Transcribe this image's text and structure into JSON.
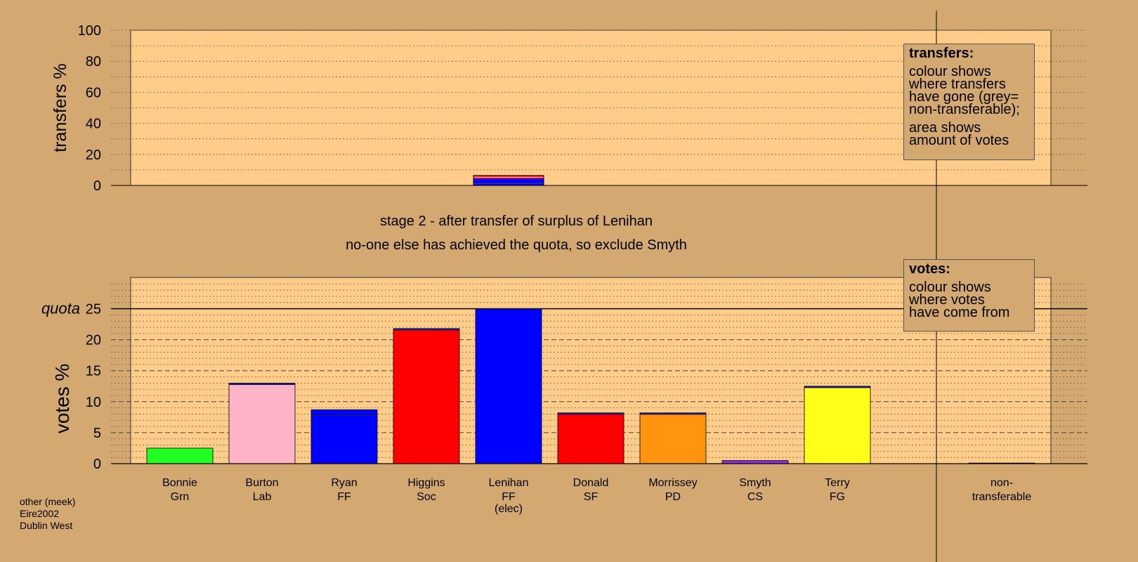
{
  "chart_data": [
    {
      "type": "bar",
      "ylabel": "transfers %",
      "ylim": [
        0,
        100
      ],
      "yticks": [
        0,
        20,
        40,
        60,
        80,
        100
      ],
      "grid": "dotted",
      "bars": [
        {
          "category": "Lenihan",
          "segments": [
            {
              "value": 1.0,
              "color": "#0000ff"
            },
            {
              "value": 0.5,
              "color": "#1a1a6e"
            },
            {
              "value": 2.8,
              "color": "#0000ff"
            },
            {
              "value": 0.7,
              "color": "#ff0000"
            },
            {
              "value": 0.6,
              "color": "#ffb3c6"
            },
            {
              "value": 0.8,
              "color": "#ff0000"
            }
          ]
        }
      ]
    },
    {
      "type": "bar",
      "ylabel": "votes %",
      "ylim": [
        0,
        30
      ],
      "yticks": [
        0,
        5,
        10,
        15,
        20,
        25
      ],
      "quota": 25,
      "quota_label": "quota",
      "grid": "dashed",
      "categories": [
        {
          "name": "Bonnie",
          "party": "Grn",
          "elec": "",
          "value": 2.5,
          "color": "#22ff22",
          "top": 0
        },
        {
          "name": "Burton",
          "party": "Lab",
          "elec": "",
          "value": 13.0,
          "color": "#ffb3c6",
          "top": 0.3
        },
        {
          "name": "Ryan",
          "party": "FF",
          "elec": "",
          "value": 8.7,
          "color": "#0000ff",
          "top": 0
        },
        {
          "name": "Higgins",
          "party": "Soc",
          "elec": "",
          "value": 21.8,
          "color": "#ff0000",
          "top": 0.3
        },
        {
          "name": "Lenihan",
          "party": "FF",
          "elec": "(elec)",
          "value": 25.0,
          "color": "#0000ff",
          "top": 0
        },
        {
          "name": "Donald",
          "party": "SF",
          "elec": "",
          "value": 8.2,
          "color": "#ff0000",
          "top": 0.1
        },
        {
          "name": "Morrissey",
          "party": "PD",
          "elec": "",
          "value": 8.2,
          "color": "#ff9410",
          "top": 0.3
        },
        {
          "name": "Smyth",
          "party": "CS",
          "elec": "",
          "value": 0.5,
          "color": "#8a2be2",
          "top": 0
        },
        {
          "name": "Terry",
          "party": "FG",
          "elec": "",
          "value": 12.5,
          "color": "#ffff1a",
          "top": 0.3
        },
        {
          "name": "non-",
          "party": "transferable",
          "elec": "",
          "value": 0.1,
          "color": "#888888",
          "top": 0
        }
      ]
    }
  ],
  "stage_line1": "stage 2 - after transfer of surplus of Lenihan",
  "stage_line2": "no-one else has achieved the quota, so exclude Smyth",
  "legend_transfers": {
    "title": "transfers:",
    "p1": "colour shows\nwhere transfers\nhave gone (grey=\nnon-transferable);",
    "p2": "area shows\namount of votes"
  },
  "legend_votes": {
    "title": "votes:",
    "p1": "colour shows\nwhere votes\nhave come from"
  },
  "footer": {
    "line1": "other (meek)",
    "line2": "Eire2002",
    "line3": "Dublin West"
  },
  "colors": {
    "background": "#d4a871",
    "plot_bg": "#ffcc8a"
  }
}
